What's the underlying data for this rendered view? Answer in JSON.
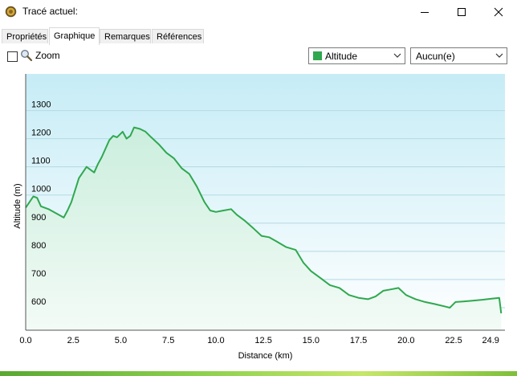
{
  "window": {
    "title": "Tracé actuel:",
    "controls": {
      "minimize": "minimize-icon",
      "maximize": "maximize-icon",
      "close": "close-icon"
    }
  },
  "tabs": [
    {
      "label": "Propriétés",
      "active": false
    },
    {
      "label": "Graphique",
      "active": true
    },
    {
      "label": "Remarques",
      "active": false
    },
    {
      "label": "Références",
      "active": false
    }
  ],
  "toolbar": {
    "zoom_label": "Zoom",
    "zoom_checked": false,
    "series_select": "Altitude",
    "series_color": "#2fa84f",
    "secondary_select": "Aucun(e)"
  },
  "chart_data": {
    "type": "area",
    "xlabel": "Distance  (km)",
    "ylabel": "Altitude (m)",
    "xlim": [
      0,
      25.2
    ],
    "ylim": [
      520,
      1430
    ],
    "x_ticks": [
      "0.0",
      "2.5",
      "5.0",
      "7.5",
      "10.0",
      "12.5",
      "15.0",
      "17.5",
      "20.0",
      "22.5",
      "24.9"
    ],
    "x_tick_values": [
      0,
      2.5,
      5,
      7.5,
      10,
      12.5,
      15,
      17.5,
      20,
      22.5,
      24.9
    ],
    "y_ticks": [
      600,
      700,
      800,
      900,
      1000,
      1100,
      1200,
      1300
    ],
    "grid": true,
    "line_color": "#2fa84f",
    "x": [
      0,
      0.4,
      0.6,
      0.8,
      1.2,
      1.6,
      2.0,
      2.2,
      2.4,
      2.8,
      3.2,
      3.6,
      3.8,
      4.0,
      4.4,
      4.6,
      4.8,
      5.1,
      5.3,
      5.5,
      5.7,
      6.0,
      6.3,
      6.6,
      7.0,
      7.4,
      7.8,
      8.2,
      8.6,
      9.0,
      9.4,
      9.7,
      10.0,
      10.4,
      10.8,
      11.1,
      11.5,
      12.0,
      12.4,
      12.8,
      13.2,
      13.7,
      14.2,
      14.6,
      15.0,
      15.5,
      16.0,
      16.5,
      17.0,
      17.5,
      18.0,
      18.4,
      18.8,
      19.2,
      19.6,
      20.0,
      20.5,
      21.0,
      21.5,
      22.0,
      22.3,
      22.6,
      23.0,
      23.5,
      24.0,
      24.5,
      24.9,
      25.0
    ],
    "y": [
      955,
      995,
      990,
      960,
      950,
      935,
      920,
      945,
      975,
      1060,
      1100,
      1080,
      1110,
      1135,
      1195,
      1210,
      1205,
      1225,
      1200,
      1210,
      1240,
      1235,
      1225,
      1205,
      1180,
      1150,
      1130,
      1095,
      1075,
      1030,
      975,
      945,
      940,
      945,
      950,
      930,
      910,
      880,
      855,
      850,
      835,
      815,
      805,
      760,
      730,
      705,
      680,
      670,
      645,
      635,
      630,
      640,
      660,
      665,
      670,
      645,
      630,
      620,
      613,
      605,
      600,
      620,
      622,
      625,
      628,
      632,
      635,
      580
    ]
  }
}
